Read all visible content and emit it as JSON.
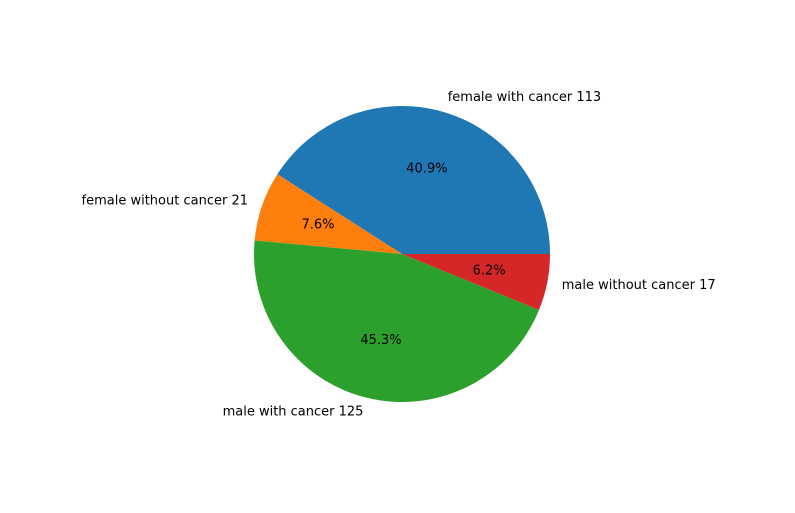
{
  "chart_data": {
    "type": "pie",
    "title": "",
    "slices": [
      {
        "label": "female with cancer 113",
        "value": 113,
        "pct_label": "40.9%",
        "color": "#1f77b4"
      },
      {
        "label": "female without cancer 21",
        "value": 21,
        "pct_label": "7.6%",
        "color": "#ff7f0e"
      },
      {
        "label": "male with cancer 125",
        "value": 125,
        "pct_label": "45.3%",
        "color": "#2ca02c"
      },
      {
        "label": "male without cancer 17",
        "value": 17,
        "pct_label": "6.2%",
        "color": "#d62728"
      }
    ],
    "start_angle_deg": 0,
    "direction": "counterclockwise",
    "legend": "none"
  }
}
